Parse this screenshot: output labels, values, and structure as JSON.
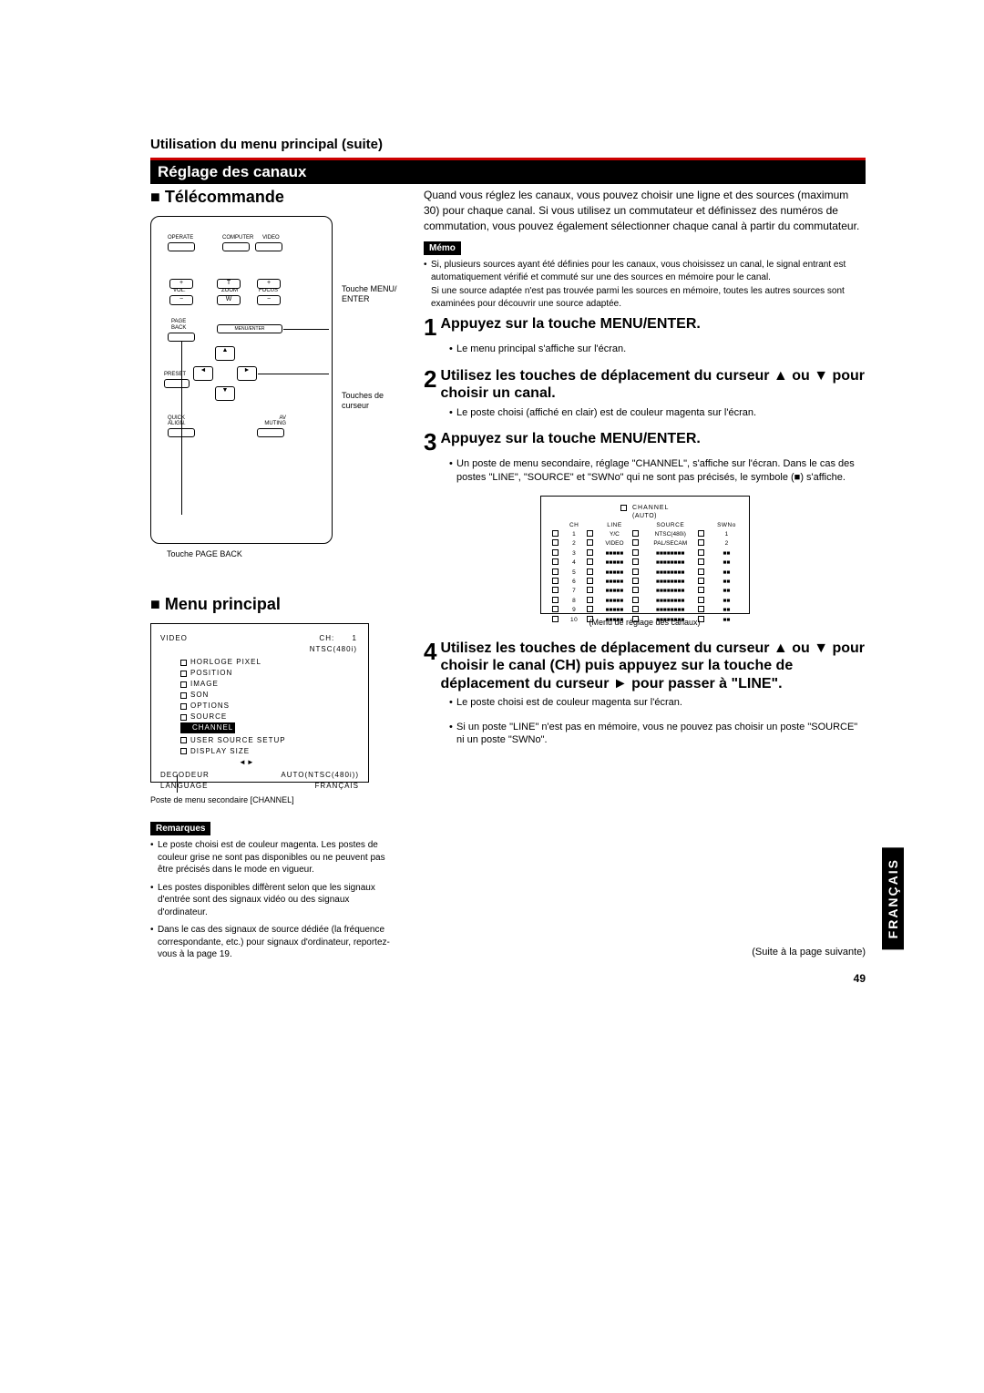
{
  "page": {
    "breadcrumb": "Utilisation du menu principal (suite)",
    "section_bar": "Réglage des canaux",
    "side_tab": "FRANÇAIS",
    "continuation": "(Suite à la page suivante)",
    "page_number": "49"
  },
  "left": {
    "remote_heading": "Télécommande",
    "remote_labels": {
      "menu_enter": "Touche MENU/ ENTER",
      "cursor": "Touches de curseur",
      "page_back": "Touche PAGE BACK",
      "operate": "OPERATE",
      "computer": "COMPUTER",
      "video_btn": "VIDEO",
      "vol": "VOL.",
      "zoom": "ZOOM",
      "focus": "FOCUS",
      "t": "T",
      "w": "W",
      "plus": "+",
      "minus": "−",
      "page": "PAGE",
      "back": "BACK",
      "menu_enter_btn": "MENU/ENTER",
      "preset": "PRESET",
      "quick_align": "QUICK ALIGN.",
      "av_muting": "AV MUTING"
    },
    "menu_heading": "Menu principal",
    "menu_box": {
      "video": "VIDEO",
      "ch": "CH:",
      "ch_val": "1",
      "ntsc": "NTSC(480i)",
      "items": [
        "HORLOGE PIXEL",
        "POSITION",
        "IMAGE",
        "SON",
        "OPTIONS",
        "SOURCE",
        "CHANNEL",
        "USER SOURCE SETUP",
        "DISPLAY SIZE"
      ],
      "decodeur": "DECODEUR",
      "decodeur_val": "AUTO(NTSC(480i))",
      "language": "LANGUAGE",
      "language_val": "FRANÇAIS"
    },
    "menu_caption": "Poste de menu secondaire [CHANNEL]",
    "remarques_label": "Remarques",
    "remarques": [
      "Le poste choisi est de couleur magenta. Les postes de couleur grise ne sont pas disponibles ou ne peuvent pas être précisés dans le mode en vigueur.",
      "Les postes disponibles diffèrent selon que les signaux d'entrée sont des signaux vidéo ou des signaux d'ordinateur.",
      "Dans le cas des signaux de source dédiée (la fréquence correspondante, etc.) pour signaux d'ordinateur, reportez-vous à la page 19."
    ]
  },
  "right": {
    "intro": "Quand vous réglez les canaux, vous pouvez choisir une ligne et des sources (maximum 30) pour chaque canal. Si vous utilisez un commutateur et définissez des numéros de commutation, vous pouvez également sélectionner chaque canal à partir du commutateur.",
    "memo_label": "Mémo",
    "memo_bullet": "Si, plusieurs sources ayant été définies pour les canaux, vous choisissez un canal, le signal entrant est automatiquement vérifié et commuté sur une des sources en mémoire pour le canal.",
    "memo_para": "Si une source adaptée n'est pas trouvée parmi les sources en mémoire, toutes les autres sources sont examinées pour découvrir une source adaptée.",
    "steps": [
      {
        "num": "1",
        "title": "Appuyez sur la touche MENU/ENTER.",
        "subs": [
          "Le menu principal s'affiche sur l'écran."
        ]
      },
      {
        "num": "2",
        "title": "Utilisez les touches de déplacement du curseur ▲ ou ▼ pour choisir un canal.",
        "subs": [
          "Le poste choisi (affiché en clair) est de couleur magenta sur l'écran."
        ]
      },
      {
        "num": "3",
        "title": "Appuyez sur la touche MENU/ENTER.",
        "subs": [
          "Un poste de menu secondaire, réglage \"CHANNEL\", s'affiche sur l'écran. Dans le cas des postes \"LINE\", \"SOURCE\" et \"SWNo\" qui ne sont pas précisés, le symbole (■) s'affiche."
        ]
      },
      {
        "num": "4",
        "title": "Utilisez les touches de déplacement du curseur ▲ ou ▼ pour choisir le canal (CH) puis appuyez sur la touche de déplacement du curseur ► pour passer à \"LINE\".",
        "subs": [
          "Le poste choisi est de couleur magenta sur l'écran.",
          "Si un poste \"LINE\" n'est pas en mémoire, vous ne pouvez pas choisir un poste \"SOURCE\" ni un poste \"SWNo\"."
        ]
      }
    ],
    "channel_menu": {
      "title": "CHANNEL",
      "auto": "(AUTO)",
      "headers": {
        "ch": "CH",
        "line": "LINE",
        "source": "SOURCE",
        "swno": "SWNo"
      },
      "rows": [
        {
          "ch": "1",
          "line": "Y/C",
          "source": "NTSC(480i)",
          "swno": "1"
        },
        {
          "ch": "2",
          "line": "VIDEO",
          "source": "PAL/SECAM",
          "swno": "2"
        },
        {
          "ch": "3",
          "line": "■■■■■",
          "source": "■■■■■■■■",
          "swno": "■■"
        },
        {
          "ch": "4",
          "line": "■■■■■",
          "source": "■■■■■■■■",
          "swno": "■■"
        },
        {
          "ch": "5",
          "line": "■■■■■",
          "source": "■■■■■■■■",
          "swno": "■■"
        },
        {
          "ch": "6",
          "line": "■■■■■",
          "source": "■■■■■■■■",
          "swno": "■■"
        },
        {
          "ch": "7",
          "line": "■■■■■",
          "source": "■■■■■■■■",
          "swno": "■■"
        },
        {
          "ch": "8",
          "line": "■■■■■",
          "source": "■■■■■■■■",
          "swno": "■■"
        },
        {
          "ch": "9",
          "line": "■■■■■",
          "source": "■■■■■■■■",
          "swno": "■■"
        },
        {
          "ch": "10",
          "line": "■■■■■",
          "source": "■■■■■■■■",
          "swno": "■■"
        }
      ],
      "caption": "(Menu de réglage des canaux)"
    }
  }
}
